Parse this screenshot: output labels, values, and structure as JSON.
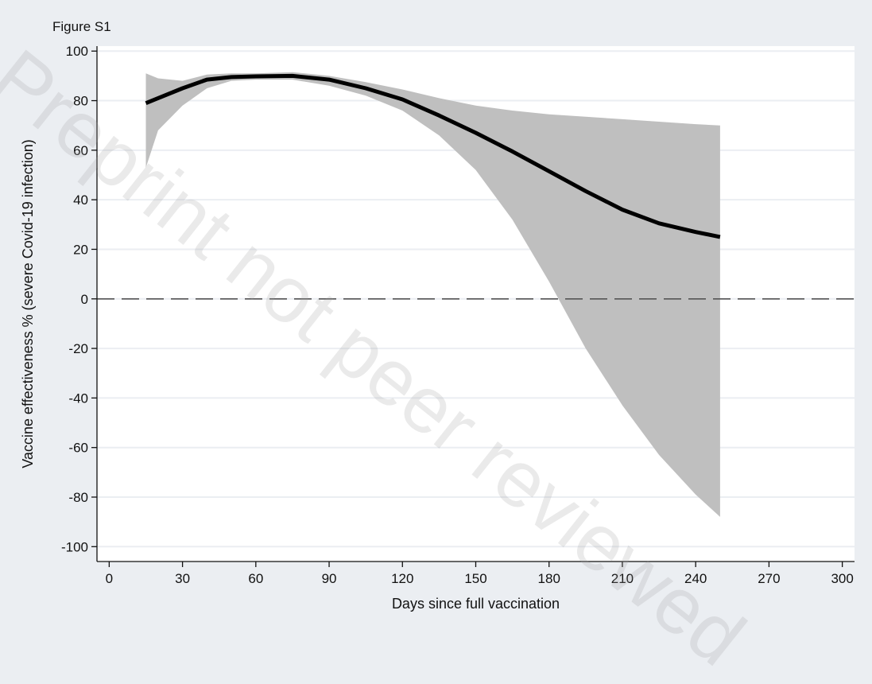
{
  "chart_data": {
    "type": "area",
    "title": "Figure S1",
    "xlabel": "Days since full vaccination",
    "ylabel": "Vaccine effectiveness % (severe Covid-19 infection)",
    "xlim": [
      -5,
      305
    ],
    "ylim": [
      -106,
      102
    ],
    "xticks": [
      0,
      30,
      60,
      90,
      120,
      150,
      180,
      210,
      240,
      270,
      300
    ],
    "yticks": [
      100,
      80,
      60,
      40,
      20,
      0,
      -20,
      -40,
      -60,
      -80,
      -100
    ],
    "grid": "horizontal",
    "reference_line": {
      "y": 0,
      "style": "dashed"
    },
    "series": [
      {
        "kind": "line",
        "x": [
          15,
          20,
          30,
          40,
          50,
          60,
          75,
          90,
          105,
          120,
          135,
          150,
          165,
          180,
          195,
          210,
          225,
          240,
          250
        ],
        "y": [
          79,
          81,
          85,
          88.5,
          89.5,
          89.8,
          90,
          88.5,
          85,
          80.5,
          74,
          67,
          59.5,
          51.5,
          43.5,
          36,
          30.5,
          27,
          25
        ]
      },
      {
        "kind": "band",
        "x": [
          15,
          20,
          30,
          40,
          50,
          60,
          75,
          90,
          105,
          120,
          135,
          150,
          165,
          180,
          195,
          210,
          225,
          240,
          250
        ],
        "upper": [
          91,
          89,
          88,
          90.5,
          91,
          91,
          91.5,
          90,
          87.5,
          84.5,
          81,
          78,
          76,
          74.5,
          73.5,
          72.5,
          71.5,
          70.5,
          70
        ],
        "lower": [
          53,
          68,
          78,
          85,
          88,
          88.5,
          88.5,
          86,
          82,
          76,
          66,
          52,
          32,
          7,
          -20,
          -43,
          -63,
          -79,
          -88
        ]
      }
    ]
  },
  "colors": {
    "background": "#ebeef2",
    "plot_area": "#ffffff",
    "band": "#bfbfbf",
    "line": "#000000",
    "gridline": "#ebeef2",
    "axis": "#111111"
  },
  "watermark": "Preprint not peer reviewed"
}
